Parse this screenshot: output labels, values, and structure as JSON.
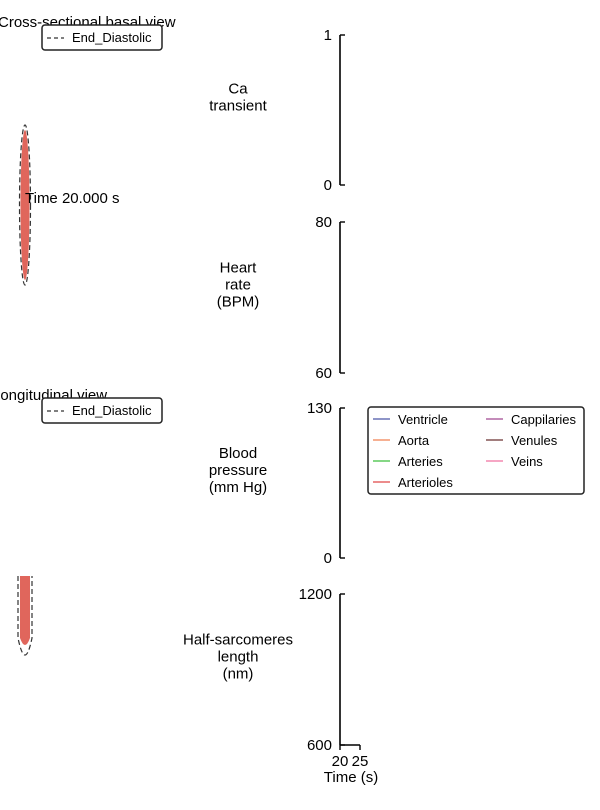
{
  "views": [
    {
      "title": "Cross-sectional basal view",
      "legend": [
        "End_Diastolic"
      ]
    },
    {
      "title": "Longitudinal view",
      "legend": [
        "End_Diastolic"
      ]
    }
  ],
  "time_label": "Time 20.000 s",
  "chart_data": [
    {
      "type": "line",
      "ylabel_lines": [
        "Ca",
        "transient"
      ],
      "ylim": [
        0,
        1
      ],
      "yticks": [
        "1",
        "0"
      ],
      "series": []
    },
    {
      "type": "line",
      "ylabel_lines": [
        "Heart",
        "rate",
        "(BPM)"
      ],
      "ylim": [
        60,
        80
      ],
      "yticks": [
        "80",
        "60"
      ],
      "series": []
    },
    {
      "type": "line",
      "ylabel_lines": [
        "Blood",
        "pressure",
        "(mm Hg)"
      ],
      "ylim": [
        0,
        130
      ],
      "yticks": [
        "130",
        "0"
      ],
      "legend_position": "right",
      "series": [
        {
          "name": "Ventricle",
          "color": "#4b56a8",
          "values": []
        },
        {
          "name": "Aorta",
          "color": "#f08050",
          "values": []
        },
        {
          "name": "Arteries",
          "color": "#3cbf3c",
          "values": []
        },
        {
          "name": "Arterioles",
          "color": "#e04848",
          "values": []
        },
        {
          "name": "Cappilaries",
          "color": "#a04890",
          "values": []
        },
        {
          "name": "Venules",
          "color": "#6a3030",
          "values": []
        },
        {
          "name": "Veins",
          "color": "#f070a0",
          "values": []
        }
      ]
    },
    {
      "type": "line",
      "ylabel_lines": [
        "Half-sarcomeres",
        "length",
        "(nm)"
      ],
      "ylim": [
        600,
        1200
      ],
      "yticks": [
        "1200",
        "600"
      ],
      "xlim": [
        20,
        25
      ],
      "xticks": [
        "20",
        "25"
      ],
      "xlabel": "Time (s)",
      "series": []
    }
  ],
  "colors": {
    "tissue": "#e0665c",
    "outline": "#333333"
  }
}
